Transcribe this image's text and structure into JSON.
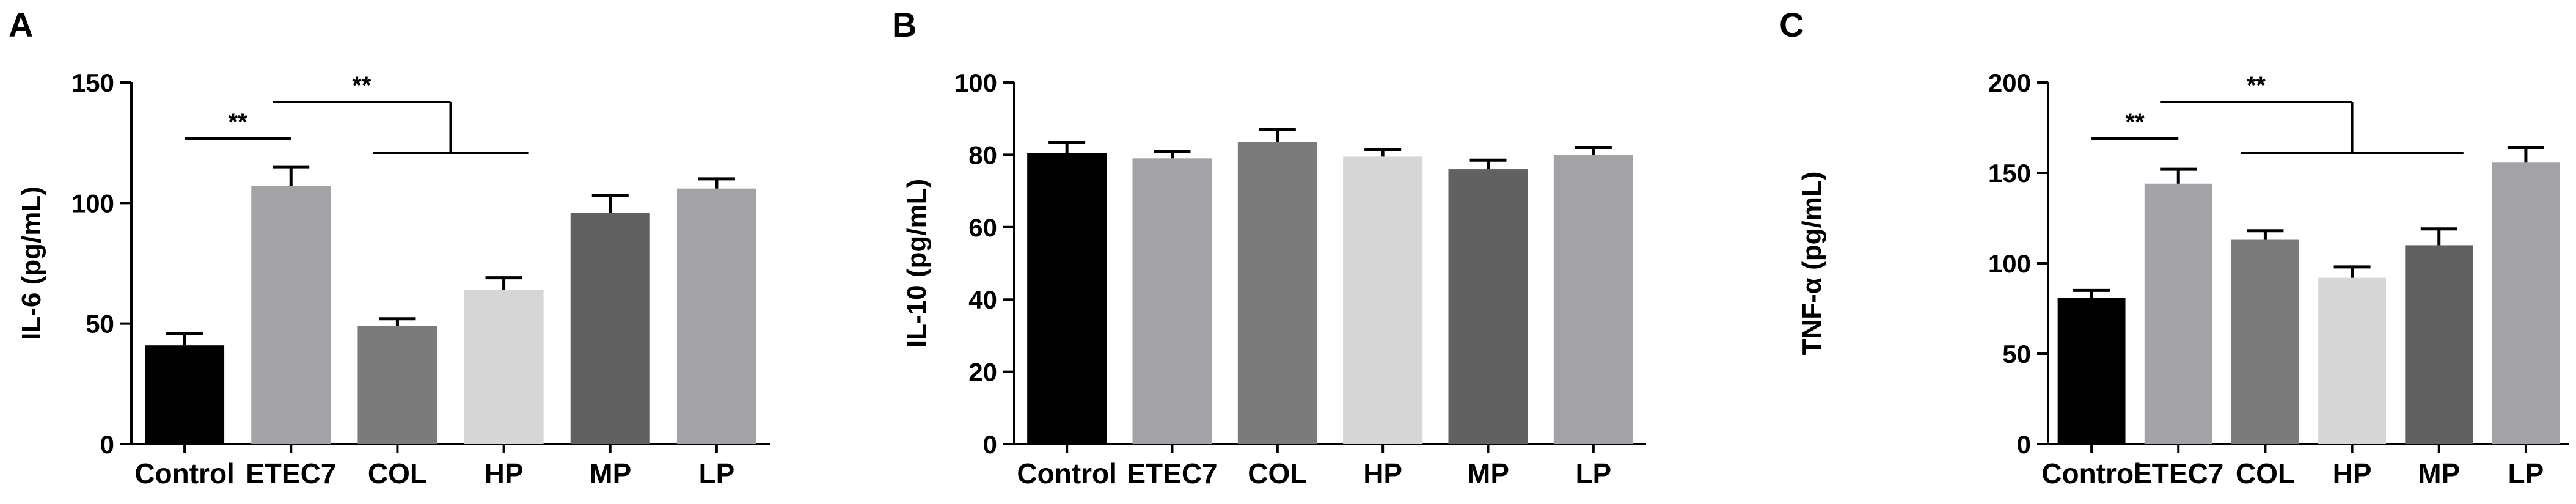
{
  "chart_data": [
    {
      "panel": "A",
      "type": "bar",
      "ylabel": "IL-6 (pg/mL)",
      "ylim": [
        0,
        150
      ],
      "yticks": [
        0,
        50,
        100,
        150
      ],
      "categories": [
        "Control",
        "ETEC7",
        "COL",
        "HP",
        "MP",
        "LP"
      ],
      "values": [
        41,
        107,
        49,
        64,
        96,
        106
      ],
      "errors": [
        5,
        8,
        3,
        5,
        7,
        4
      ],
      "colors": [
        "#000000",
        "#a3a2a7",
        "#7b7b7b",
        "#d6d6d6",
        "#616161",
        "#a3a2a7"
      ],
      "grid": false,
      "significance": [
        {
          "label": "**",
          "from": "Control",
          "to": "ETEC7"
        },
        {
          "label": "**",
          "from": "ETEC7",
          "to": [
            "COL",
            "HP"
          ]
        }
      ]
    },
    {
      "panel": "B",
      "type": "bar",
      "ylabel": "IL-10 (pg/mL)",
      "ylim": [
        0,
        100
      ],
      "yticks": [
        0,
        20,
        40,
        60,
        80,
        100
      ],
      "categories": [
        "Control",
        "ETEC7",
        "COL",
        "HP",
        "MP",
        "LP"
      ],
      "values": [
        80.5,
        79,
        83.5,
        79.5,
        76,
        80
      ],
      "errors": [
        3,
        2,
        3.5,
        2,
        2.5,
        2
      ],
      "colors": [
        "#000000",
        "#a3a2a7",
        "#7b7b7b",
        "#d6d6d6",
        "#616161",
        "#a3a2a7"
      ],
      "grid": false,
      "significance": []
    },
    {
      "panel": "C",
      "type": "bar",
      "ylabel": "TNF-α (pg/mL)",
      "ylim": [
        0,
        200
      ],
      "yticks": [
        0,
        50,
        100,
        150,
        200
      ],
      "categories": [
        "Control",
        "ETEC7",
        "COL",
        "HP",
        "MP",
        "LP"
      ],
      "values": [
        81,
        144,
        113,
        92,
        110,
        156
      ],
      "errors": [
        4,
        8,
        5,
        6,
        9,
        8
      ],
      "colors": [
        "#000000",
        "#a3a2a7",
        "#7b7b7b",
        "#d6d6d6",
        "#616161",
        "#a3a2a7"
      ],
      "grid": false,
      "significance": [
        {
          "label": "**",
          "from": "Control",
          "to": "ETEC7"
        },
        {
          "label": "**",
          "from": "ETEC7",
          "to": [
            "COL",
            "HP",
            "MP"
          ]
        }
      ]
    }
  ]
}
